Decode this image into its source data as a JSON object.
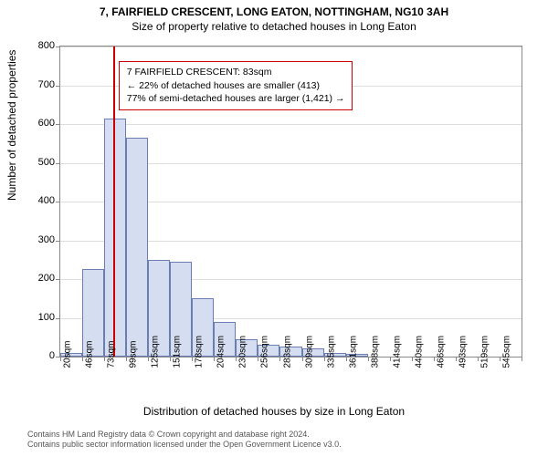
{
  "title_line1": "7, FAIRFIELD CRESCENT, LONG EATON, NOTTINGHAM, NG10 3AH",
  "title_line2": "Size of property relative to detached houses in Long Eaton",
  "chart": {
    "type": "histogram",
    "y_axis_label": "Number of detached properties",
    "x_axis_label": "Distribution of detached houses by size in Long Eaton",
    "ylim": [
      0,
      800
    ],
    "ytick_step": 100,
    "yticks": [
      0,
      100,
      200,
      300,
      400,
      500,
      600,
      700,
      800
    ],
    "x_labels": [
      "20sqm",
      "46sqm",
      "73sqm",
      "99sqm",
      "125sqm",
      "151sqm",
      "178sqm",
      "204sqm",
      "230sqm",
      "256sqm",
      "283sqm",
      "309sqm",
      "335sqm",
      "361sqm",
      "388sqm",
      "414sqm",
      "440sqm",
      "466sqm",
      "493sqm",
      "519sqm",
      "545sqm"
    ],
    "values": [
      10,
      225,
      615,
      565,
      250,
      245,
      150,
      90,
      45,
      30,
      25,
      22,
      10,
      8,
      0,
      0,
      0,
      0,
      0,
      0,
      0
    ],
    "bar_fill": "#d5ddf0",
    "bar_stroke": "#6b7db3",
    "grid_color": "#dddddd",
    "background_color": "#ffffff",
    "marker_color": "#cc0000",
    "marker_x_value": 83,
    "x_range": [
      20,
      571
    ],
    "annotation": {
      "line1": "7 FAIRFIELD CRESCENT: 83sqm",
      "line2": "← 22% of detached houses are smaller (413)",
      "line3": "77% of semi-detached houses are larger (1,421) →",
      "border_color": "#cc0000",
      "fontsize": 10.5
    }
  },
  "attribution": {
    "line1": "Contains HM Land Registry data © Crown copyright and database right 2024.",
    "line2": "Contains public sector information licensed under the Open Government Licence v3.0."
  }
}
